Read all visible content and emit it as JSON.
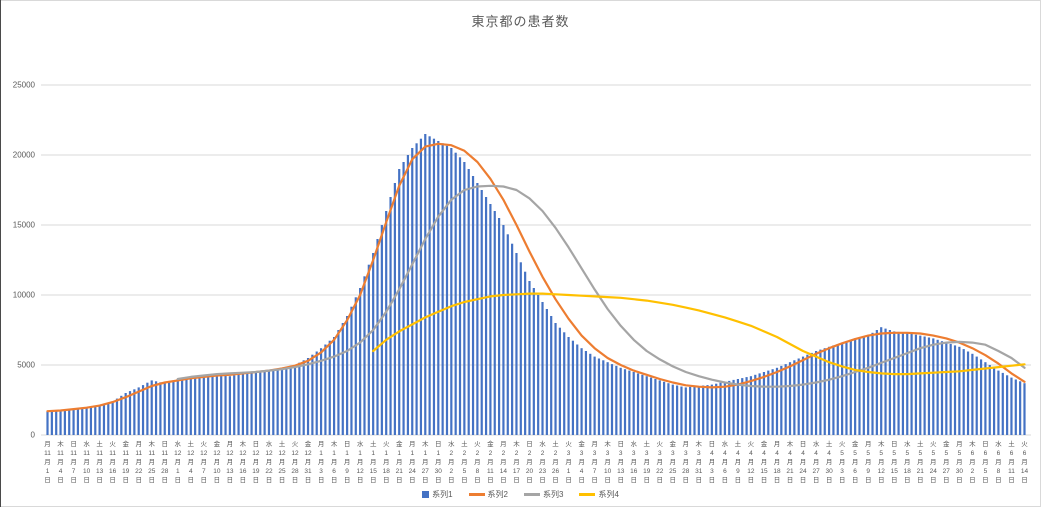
{
  "chart_data": {
    "type": "combo",
    "title": "東京都の患者数",
    "ylim": [
      0,
      25000
    ],
    "yticks": [
      0,
      5000,
      10000,
      15000,
      20000,
      25000
    ],
    "x_sampling": "every 3 days",
    "grid": "horizontal",
    "legend_position": "bottom",
    "colors": {
      "bar": "#4472C4",
      "line2": "#ED7D31",
      "line3": "#A5A5A5",
      "line4": "#FFC000",
      "title": "#595959",
      "gridline": "#D9D9D9"
    },
    "ticks": [
      [
        "月",
        11,
        1
      ],
      [
        "木",
        11,
        4
      ],
      [
        "日",
        11,
        7
      ],
      [
        "水",
        11,
        10
      ],
      [
        "土",
        11,
        13
      ],
      [
        "火",
        11,
        16
      ],
      [
        "金",
        11,
        19
      ],
      [
        "月",
        11,
        22
      ],
      [
        "木",
        11,
        25
      ],
      [
        "日",
        11,
        28
      ],
      [
        "水",
        12,
        1
      ],
      [
        "土",
        12,
        4
      ],
      [
        "火",
        12,
        7
      ],
      [
        "金",
        12,
        10
      ],
      [
        "月",
        12,
        13
      ],
      [
        "木",
        12,
        16
      ],
      [
        "日",
        12,
        19
      ],
      [
        "水",
        12,
        22
      ],
      [
        "土",
        12,
        25
      ],
      [
        "火",
        12,
        28
      ],
      [
        "金",
        12,
        31
      ],
      [
        "月",
        1,
        3
      ],
      [
        "木",
        1,
        6
      ],
      [
        "日",
        1,
        9
      ],
      [
        "水",
        1,
        12
      ],
      [
        "土",
        1,
        15
      ],
      [
        "火",
        1,
        18
      ],
      [
        "金",
        1,
        21
      ],
      [
        "月",
        1,
        24
      ],
      [
        "木",
        1,
        27
      ],
      [
        "日",
        1,
        30
      ],
      [
        "水",
        2,
        2
      ],
      [
        "土",
        2,
        5
      ],
      [
        "火",
        2,
        8
      ],
      [
        "金",
        2,
        11
      ],
      [
        "月",
        2,
        14
      ],
      [
        "木",
        2,
        17
      ],
      [
        "日",
        2,
        20
      ],
      [
        "水",
        2,
        23
      ],
      [
        "土",
        2,
        26
      ],
      [
        "火",
        3,
        1
      ],
      [
        "金",
        3,
        4
      ],
      [
        "月",
        3,
        7
      ],
      [
        "木",
        3,
        10
      ],
      [
        "日",
        3,
        13
      ],
      [
        "水",
        3,
        16
      ],
      [
        "土",
        3,
        19
      ],
      [
        "火",
        3,
        22
      ],
      [
        "金",
        3,
        25
      ],
      [
        "月",
        3,
        28
      ],
      [
        "木",
        3,
        31
      ],
      [
        "日",
        4,
        3
      ],
      [
        "水",
        4,
        6
      ],
      [
        "土",
        4,
        9
      ],
      [
        "火",
        4,
        12
      ],
      [
        "金",
        4,
        15
      ],
      [
        "月",
        4,
        18
      ],
      [
        "木",
        4,
        21
      ],
      [
        "日",
        4,
        24
      ],
      [
        "水",
        4,
        27
      ],
      [
        "土",
        4,
        30
      ],
      [
        "火",
        5,
        3
      ],
      [
        "金",
        5,
        6
      ],
      [
        "月",
        5,
        9
      ],
      [
        "木",
        5,
        12
      ],
      [
        "日",
        5,
        15
      ],
      [
        "水",
        5,
        18
      ],
      [
        "土",
        5,
        21
      ],
      [
        "火",
        5,
        24
      ],
      [
        "金",
        5,
        27
      ],
      [
        "月",
        5,
        30
      ],
      [
        "木",
        6,
        2
      ],
      [
        "日",
        6,
        5
      ],
      [
        "水",
        6,
        8
      ],
      [
        "土",
        6,
        11
      ],
      [
        "火",
        6,
        14
      ]
    ],
    "series": [
      {
        "name": "系列1",
        "type": "bar",
        "color": "#4472C4",
        "values": [
          1700,
          1800,
          1850,
          2000,
          2100,
          2400,
          3000,
          3400,
          3900,
          3700,
          4000,
          4100,
          4200,
          4300,
          4200,
          4400,
          4500,
          4600,
          4800,
          5000,
          5500,
          6200,
          7000,
          8500,
          10500,
          13000,
          16000,
          19000,
          20500,
          21500,
          21000,
          20500,
          19500,
          18000,
          16500,
          15000,
          13000,
          11000,
          9500,
          8000,
          7000,
          6200,
          5600,
          5200,
          4800,
          4500,
          4200,
          3900,
          3600,
          3400,
          3500,
          3600,
          3800,
          4000,
          4200,
          4500,
          4800,
          5200,
          5600,
          6000,
          6300,
          6600,
          6900,
          7100,
          7700,
          7400,
          7300,
          7100,
          6900,
          6600,
          6300,
          5800,
          5200,
          4600,
          4100,
          3700
        ]
      },
      {
        "name": "系列2",
        "type": "line",
        "color": "#ED7D31",
        "values": [
          1700,
          1750,
          1850,
          1950,
          2100,
          2350,
          2700,
          3100,
          3500,
          3750,
          3900,
          4050,
          4150,
          4250,
          4300,
          4400,
          4500,
          4600,
          4750,
          4950,
          5300,
          5900,
          6800,
          8200,
          10000,
          12500,
          15200,
          17800,
          19700,
          20600,
          20800,
          20700,
          20300,
          19500,
          18300,
          16800,
          15000,
          13100,
          11300,
          9700,
          8300,
          7100,
          6200,
          5500,
          5000,
          4600,
          4300,
          4000,
          3750,
          3550,
          3450,
          3400,
          3450,
          3600,
          3850,
          4150,
          4500,
          4900,
          5350,
          5800,
          6200,
          6550,
          6850,
          7100,
          7250,
          7300,
          7300,
          7250,
          7100,
          6900,
          6600,
          6200,
          5700,
          5100,
          4400,
          3800
        ]
      },
      {
        "name": "系列3",
        "type": "line",
        "color": "#A5A5A5",
        "values": [
          null,
          null,
          null,
          null,
          null,
          null,
          null,
          null,
          null,
          null,
          4000,
          4150,
          4250,
          4350,
          4400,
          4450,
          4500,
          4600,
          4700,
          4850,
          5050,
          5300,
          5600,
          6000,
          6600,
          7500,
          8800,
          10400,
          12200,
          14000,
          15600,
          16800,
          17500,
          17750,
          17800,
          17750,
          17500,
          16900,
          16000,
          14800,
          13400,
          11900,
          10400,
          9000,
          7800,
          6800,
          6000,
          5400,
          4900,
          4500,
          4200,
          3950,
          3750,
          3600,
          3500,
          3450,
          3450,
          3500,
          3600,
          3750,
          3950,
          4200,
          4500,
          4800,
          5150,
          5500,
          5850,
          6200,
          6450,
          6600,
          6650,
          6600,
          6450,
          6000,
          5500,
          4800
        ]
      },
      {
        "name": "系列4",
        "type": "line",
        "color": "#FFC000",
        "values": [
          null,
          null,
          null,
          null,
          null,
          null,
          null,
          null,
          null,
          null,
          null,
          null,
          null,
          null,
          null,
          null,
          null,
          null,
          null,
          null,
          null,
          null,
          null,
          null,
          null,
          6000,
          6800,
          7400,
          7900,
          8400,
          8800,
          9200,
          9500,
          9700,
          9900,
          10000,
          10050,
          10100,
          10100,
          10050,
          10000,
          9950,
          9900,
          9850,
          9800,
          9700,
          9600,
          9450,
          9300,
          9100,
          8900,
          8650,
          8400,
          8100,
          7800,
          7400,
          7000,
          6500,
          6000,
          5600,
          5200,
          4900,
          4650,
          4500,
          4400,
          4350,
          4350,
          4400,
          4450,
          4500,
          4550,
          4650,
          4750,
          4850,
          4950,
          5050
        ]
      }
    ]
  }
}
